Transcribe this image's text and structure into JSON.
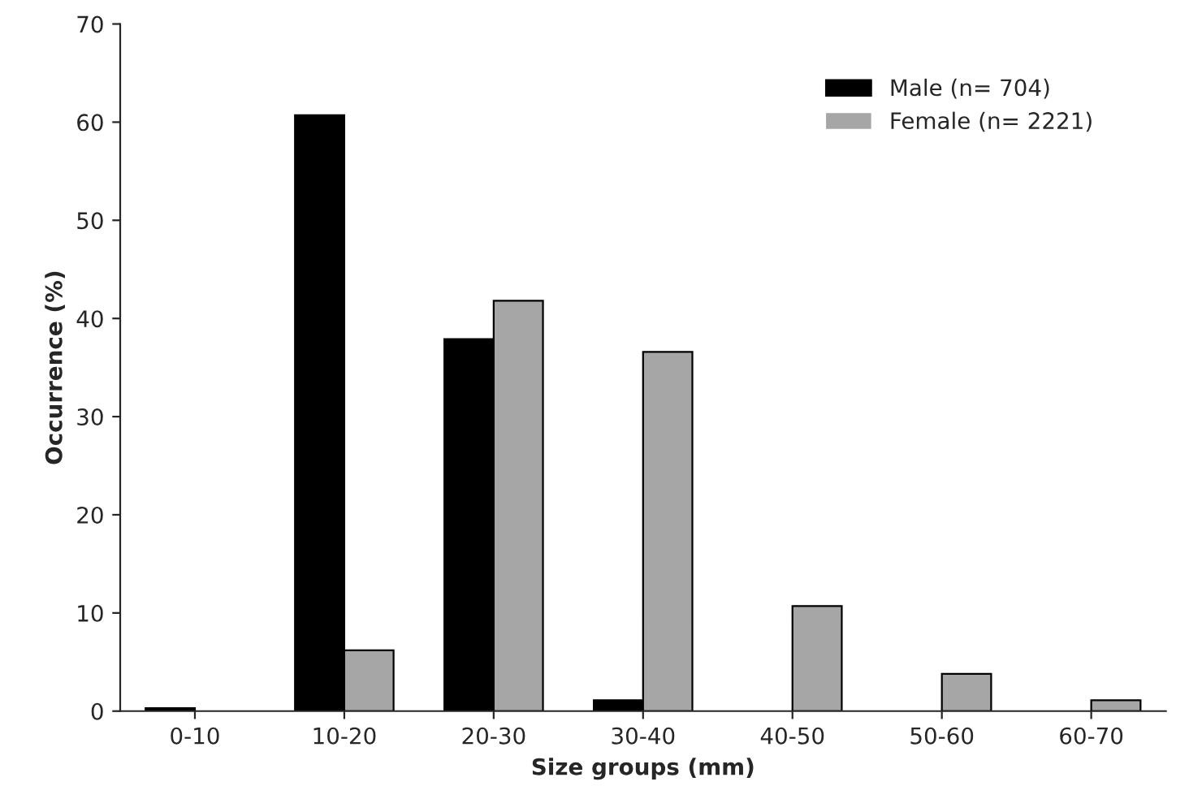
{
  "chart_data": {
    "type": "bar",
    "xlabel": "Size groups (mm)",
    "ylabel": "Occurrence (%)",
    "categories": [
      "0-10",
      "10-20",
      "20-30",
      "30-40",
      "40-50",
      "50-60",
      "60-70"
    ],
    "series": [
      {
        "name": "Male (n= 704)",
        "color": "#000000",
        "values": [
          0.3,
          60.7,
          37.9,
          1.1,
          0,
          0,
          0
        ]
      },
      {
        "name": "Female (n= 2221)",
        "color": "#a6a6a6",
        "values": [
          0,
          6.2,
          41.8,
          36.6,
          10.7,
          3.8,
          1.1
        ]
      }
    ],
    "ylim": [
      0,
      70
    ],
    "yticks": [
      0,
      10,
      20,
      30,
      40,
      50,
      60,
      70
    ],
    "grid": false,
    "legend": "top right"
  }
}
